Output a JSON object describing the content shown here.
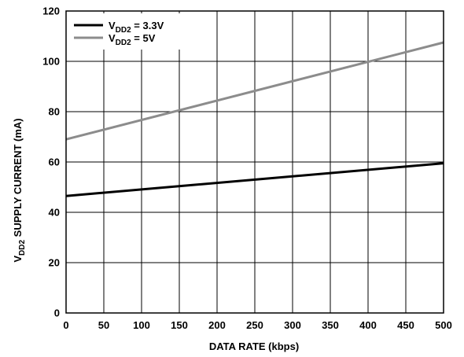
{
  "chart_data": {
    "type": "line",
    "xlabel": "DATA RATE (kbps)",
    "ylabel": {
      "prefix": "V",
      "sub": "DD2",
      "suffix": " SUPPLY CURRENT (mA)"
    },
    "xlim": [
      0,
      500
    ],
    "ylim": [
      0,
      120
    ],
    "xticks": [
      "0",
      "50",
      "100",
      "150",
      "200",
      "250",
      "300",
      "350",
      "400",
      "450",
      "500"
    ],
    "yticks": [
      "0",
      "20",
      "40",
      "60",
      "80",
      "100",
      "120"
    ],
    "grid": true,
    "legend_position": "top-left",
    "series": [
      {
        "legend": {
          "prefix": "V",
          "sub": "DD2",
          "suffix": " = 3.3V"
        },
        "color": "#000000",
        "x": [
          0,
          500
        ],
        "y": [
          46.5,
          59.5
        ]
      },
      {
        "legend": {
          "prefix": "V",
          "sub": "DD2",
          "suffix": " = 5V"
        },
        "color": "#8c8c8c",
        "x": [
          0,
          500
        ],
        "y": [
          69,
          107.5
        ]
      }
    ]
  }
}
